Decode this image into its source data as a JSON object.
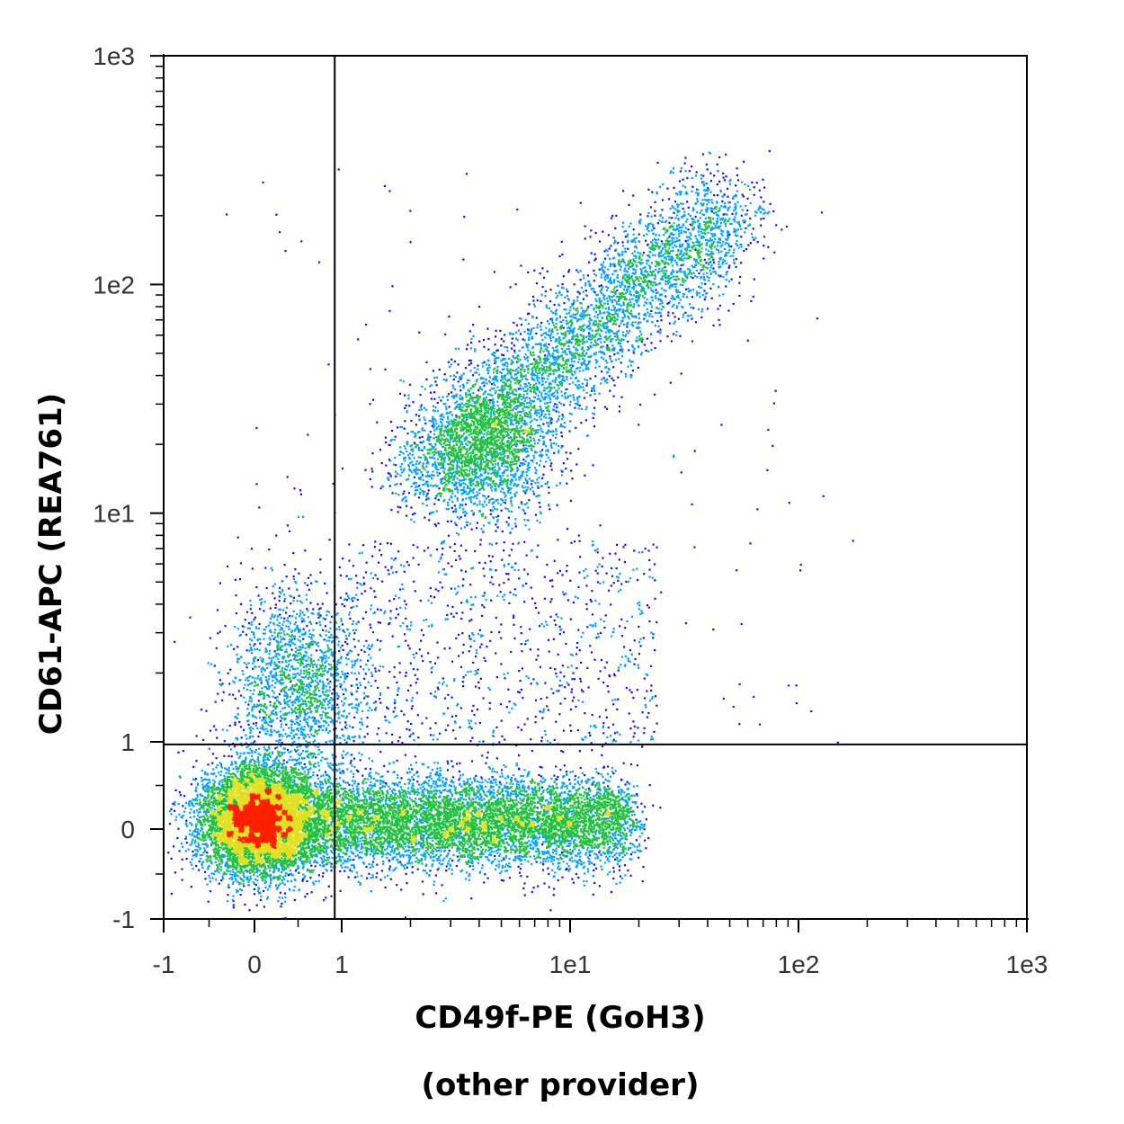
{
  "chart_data": {
    "type": "scatter",
    "plot_style": "density-pseudocolor",
    "xlabel": "CD49f-PE (GoH3)",
    "xlabel_line2": "(other provider)",
    "ylabel": "CD61-APC (REA761)",
    "x_scale": "biexponential",
    "y_scale": "biexponential",
    "xlim": [
      -1,
      1000
    ],
    "ylim": [
      -1,
      1000
    ],
    "x_ticks": [
      {
        "label": "-1",
        "value": -1
      },
      {
        "label": "0",
        "value": 0
      },
      {
        "label": "1",
        "value": 1
      },
      {
        "label": "1e1",
        "value": 10
      },
      {
        "label": "1e2",
        "value": 100
      },
      {
        "label": "1e3",
        "value": 1000
      }
    ],
    "y_ticks": [
      {
        "label": "-1",
        "value": -1
      },
      {
        "label": "0",
        "value": 0
      },
      {
        "label": "1",
        "value": 1
      },
      {
        "label": "1e1",
        "value": 10
      },
      {
        "label": "1e2",
        "value": 100
      },
      {
        "label": "1e3",
        "value": 1000
      }
    ],
    "quadrant_gate": {
      "x": 0.92,
      "y": 0.97
    },
    "populations": [
      {
        "name": "double negative",
        "x_center": 0.05,
        "y_center": 0.05,
        "relative_size": 0.45
      },
      {
        "name": "CD49f+ CD61-",
        "x_range": [
          1,
          20
        ],
        "y_center": 0.05,
        "relative_size": 0.3
      },
      {
        "name": "CD49f+ CD61+",
        "x_range": [
          2,
          60
        ],
        "y_range": [
          5,
          300
        ],
        "relative_size": 0.2
      },
      {
        "name": "CD49f- CD61 low",
        "x_center": 0.5,
        "y_range": [
          1,
          5
        ],
        "relative_size": 0.05
      }
    ],
    "grid": false,
    "legend": "none",
    "colors": {
      "low": "#1010ff",
      "mid_low": "#00a0ff",
      "mid": "#20c040",
      "mid_high": "#e0e020",
      "high": "#ff2000",
      "gate_line": "#000000"
    }
  }
}
